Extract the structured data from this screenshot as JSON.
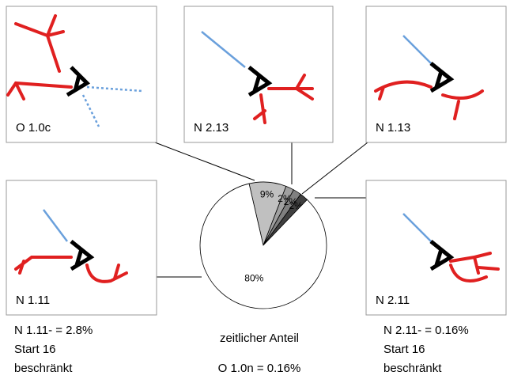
{
  "chart_data": {
    "type": "pie",
    "title": "zeitlicher Anteil",
    "values": [
      9,
      2,
      2,
      2,
      80
    ],
    "value_labels": [
      "9%",
      "2%",
      "2%",
      "2%",
      "80%"
    ],
    "colors": [
      "#c0c0c0",
      "#a0a0a0",
      "#808080",
      "#404040",
      "#ffffff"
    ]
  },
  "panels": [
    {
      "label": "O 1.0c"
    },
    {
      "label": "N 2.13"
    },
    {
      "label": "N 1.13"
    },
    {
      "label": "N 1.11"
    },
    {
      "label": "N 2.11"
    }
  ],
  "notes": {
    "left": [
      "N 1.11- = 2.8%",
      "Start 16",
      "beschränkt"
    ],
    "center": "O 1.0n = 0.16%",
    "right": [
      "N 2.11- = 0.16%",
      "Start 16",
      "beschränkt"
    ]
  }
}
